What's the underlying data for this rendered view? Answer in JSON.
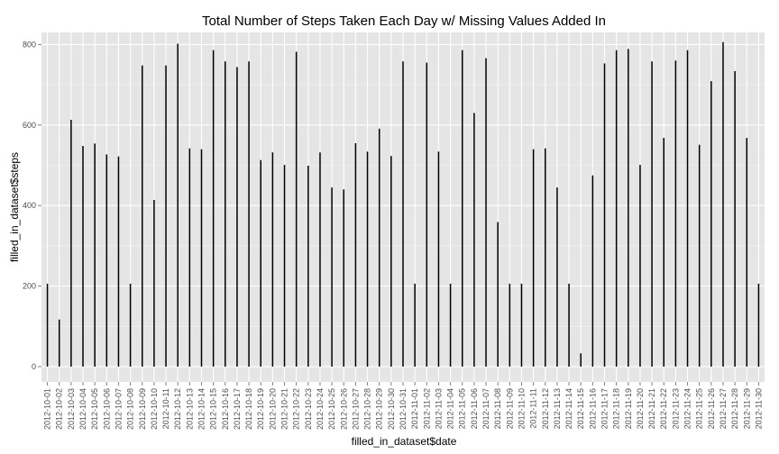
{
  "chart_data": {
    "type": "bar",
    "title": "Total Number of Steps Taken Each Day w/ Missing Values Added In",
    "xlabel": "filled_in_dataset$date",
    "ylabel": "filled_in_dataset$steps",
    "ylim": [
      -38,
      830
    ],
    "yticks": [
      0,
      200,
      400,
      600,
      800
    ],
    "grid": true,
    "legend": "none",
    "colors": {
      "panel": "#e5e5e5",
      "grid_major": "#ffffff",
      "grid_minor": "#f2f2f2",
      "bar": "#000000",
      "tick_text": "#4d4d4d"
    },
    "categories": [
      "2012-10-01",
      "2012-10-02",
      "2012-10-03",
      "2012-10-04",
      "2012-10-05",
      "2012-10-06",
      "2012-10-07",
      "2012-10-08",
      "2012-10-09",
      "2012-10-10",
      "2012-10-11",
      "2012-10-12",
      "2012-10-13",
      "2012-10-14",
      "2012-10-15",
      "2012-10-16",
      "2012-10-17",
      "2012-10-18",
      "2012-10-19",
      "2012-10-20",
      "2012-10-21",
      "2012-10-22",
      "2012-10-23",
      "2012-10-24",
      "2012-10-25",
      "2012-10-26",
      "2012-10-27",
      "2012-10-28",
      "2012-10-29",
      "2012-10-30",
      "2012-10-31",
      "2012-11-01",
      "2012-11-02",
      "2012-11-03",
      "2012-11-04",
      "2012-11-05",
      "2012-11-06",
      "2012-11-07",
      "2012-11-08",
      "2012-11-09",
      "2012-11-10",
      "2012-11-11",
      "2012-11-12",
      "2012-11-13",
      "2012-11-14",
      "2012-11-15",
      "2012-11-16",
      "2012-11-17",
      "2012-11-18",
      "2012-11-19",
      "2012-11-20",
      "2012-11-21",
      "2012-11-22",
      "2012-11-23",
      "2012-11-24",
      "2012-11-25",
      "2012-11-26",
      "2012-11-27",
      "2012-11-28",
      "2012-11-29",
      "2012-11-30"
    ],
    "values": [
      206,
      117,
      613,
      548,
      554,
      527,
      522,
      206,
      748,
      414,
      748,
      802,
      542,
      540,
      786,
      758,
      744,
      758,
      513,
      532,
      501,
      782,
      499,
      532,
      445,
      440,
      555,
      534,
      591,
      523,
      758,
      206,
      755,
      534,
      206,
      786,
      630,
      766,
      359,
      206,
      206,
      540,
      542,
      445,
      206,
      33,
      475,
      753,
      786,
      789,
      501,
      758,
      568,
      760,
      786,
      551,
      709,
      806,
      734,
      568,
      206
    ]
  }
}
